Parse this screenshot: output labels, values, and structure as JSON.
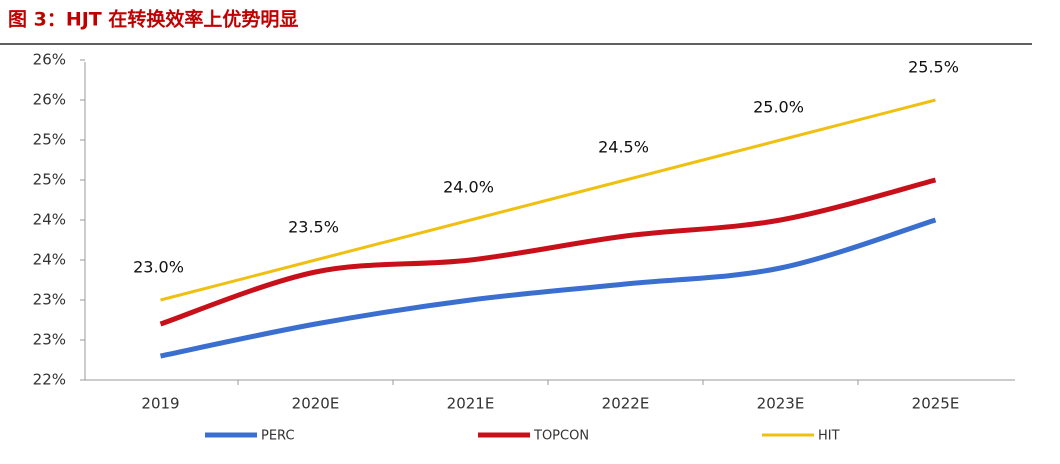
{
  "chart_data": {
    "type": "line",
    "title": "图 3：HJT 在转换效率上优势明显",
    "categories": [
      "2019",
      "2020E",
      "2021E",
      "2022E",
      "2023E",
      "2025E"
    ],
    "ylim": [
      22,
      26
    ],
    "yticks": [
      {
        "value": 22,
        "label": "22%"
      },
      {
        "value": 22.5,
        "label": "23%"
      },
      {
        "value": 23,
        "label": "23%"
      },
      {
        "value": 23.5,
        "label": "24%"
      },
      {
        "value": 24,
        "label": "24%"
      },
      {
        "value": 24.5,
        "label": "25%"
      },
      {
        "value": 25,
        "label": "25%"
      },
      {
        "value": 25.5,
        "label": "26%"
      },
      {
        "value": 26,
        "label": "26%"
      }
    ],
    "series": [
      {
        "name": "PERC",
        "color": "#3a6fd0",
        "values": [
          22.3,
          22.7,
          23.0,
          23.2,
          23.4,
          24.0
        ]
      },
      {
        "name": "TOPCON",
        "color": "#c8101a",
        "values": [
          22.7,
          23.35,
          23.5,
          23.8,
          24.0,
          24.5
        ]
      },
      {
        "name": "HIT",
        "color": "#f0c010",
        "values": [
          23.0,
          23.5,
          24.0,
          24.5,
          25.0,
          25.5
        ],
        "value_labels": [
          "23.0%",
          "23.5%",
          "24.0%",
          "24.5%",
          "25.0%",
          "25.5%"
        ]
      }
    ]
  }
}
